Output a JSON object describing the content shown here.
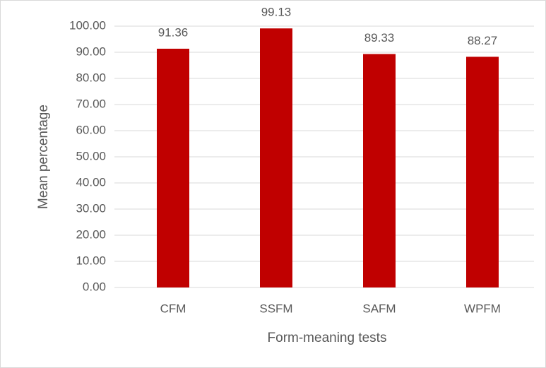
{
  "chart_data": {
    "type": "bar",
    "x_label": "Form-meaning tests",
    "y_label": "Mean percentage",
    "categories": [
      "CFM",
      "SSFM",
      "SAFM",
      "WPFM"
    ],
    "values": [
      91.36,
      99.13,
      89.33,
      88.27
    ],
    "color": "#c00000",
    "ylim": [
      0,
      100
    ],
    "yticks": [
      {
        "value": 0,
        "label": "0.00"
      },
      {
        "value": 10,
        "label": "10.00"
      },
      {
        "value": 20,
        "label": "20.00"
      },
      {
        "value": 30,
        "label": "30.00"
      },
      {
        "value": 40,
        "label": "40.00"
      },
      {
        "value": 50,
        "label": "50.00"
      },
      {
        "value": 60,
        "label": "60.00"
      },
      {
        "value": 70,
        "label": "70.00"
      },
      {
        "value": 80,
        "label": "80.00"
      },
      {
        "value": 90,
        "label": "90.00"
      },
      {
        "value": 100,
        "label": "100.00"
      }
    ],
    "grid": true
  }
}
